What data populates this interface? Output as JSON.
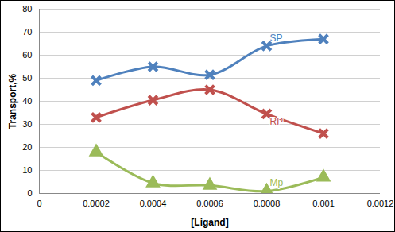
{
  "chart_data": {
    "type": "line",
    "xlabel": "[Ligand]",
    "ylabel": "Transport,%",
    "x": [
      0.0002,
      0.0004,
      0.0006,
      0.0008,
      0.001
    ],
    "series": [
      {
        "name": "SP",
        "color": "#4F81BD",
        "marker": "x",
        "values": [
          49,
          55,
          51.5,
          64,
          67
        ]
      },
      {
        "name": "RP",
        "color": "#C0504D",
        "marker": "x",
        "values": [
          33,
          40.5,
          45,
          34.5,
          26
        ]
      },
      {
        "name": "Mp",
        "color": "#9BBB59",
        "marker": "triangle",
        "values": [
          18,
          4.5,
          3.5,
          1,
          7
        ]
      }
    ],
    "xlim": [
      0,
      0.0012
    ],
    "xticks": [
      0,
      0.0002,
      0.0004,
      0.0006,
      0.0008,
      0.001,
      0.0012
    ],
    "ylim": [
      0,
      80
    ],
    "yticks": [
      0,
      10,
      20,
      30,
      40,
      50,
      60,
      70,
      80
    ],
    "grid": true
  }
}
